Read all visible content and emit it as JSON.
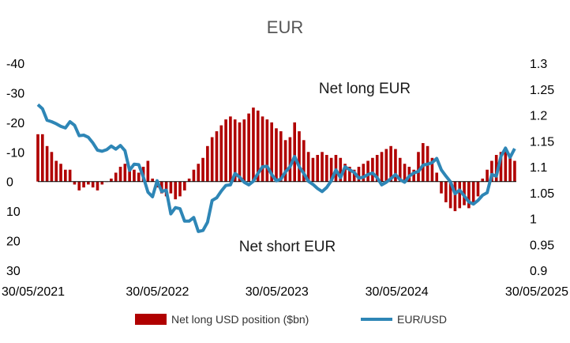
{
  "chart_data": {
    "type": "bar+line",
    "title": "EUR",
    "annotations": [
      "Net long EUR",
      "Net short EUR"
    ],
    "x_tick_labels": [
      "30/05/2021",
      "30/05/2022",
      "30/05/2023",
      "30/05/2024",
      "30/05/2025"
    ],
    "left_axis": {
      "tick_labels": [
        "-40",
        "-30",
        "-20",
        "-10",
        "0",
        "10",
        "20",
        "30"
      ],
      "ylim": [
        -40,
        30
      ],
      "inverted": true
    },
    "right_axis": {
      "tick_labels": [
        "1.3",
        "1.25",
        "1.2",
        "1.15",
        "1.1",
        "1.05",
        "1",
        "0.95",
        "0.9"
      ],
      "ylim": [
        0.9,
        1.3
      ]
    },
    "legend_position": "bottom",
    "series": [
      {
        "name": "Net long USD position ($bn)",
        "type": "bar",
        "axis": "left",
        "color": "#b00000",
        "points": [
          [
            "2021-05-30",
            -16
          ],
          [
            "2021-06-13",
            -16
          ],
          [
            "2021-06-27",
            -12
          ],
          [
            "2021-07-11",
            -10
          ],
          [
            "2021-07-25",
            -7
          ],
          [
            "2021-08-08",
            -6
          ],
          [
            "2021-08-22",
            -4
          ],
          [
            "2021-09-05",
            -4
          ],
          [
            "2021-09-19",
            1
          ],
          [
            "2021-10-03",
            3
          ],
          [
            "2021-10-17",
            2
          ],
          [
            "2021-10-31",
            1
          ],
          [
            "2021-11-14",
            2
          ],
          [
            "2021-11-28",
            3
          ],
          [
            "2021-12-12",
            1
          ],
          [
            "2021-12-26",
            0
          ],
          [
            "2022-01-09",
            -1
          ],
          [
            "2022-01-23",
            -3
          ],
          [
            "2022-02-06",
            -5
          ],
          [
            "2022-02-20",
            -6
          ],
          [
            "2022-03-06",
            -5
          ],
          [
            "2022-03-20",
            -4
          ],
          [
            "2022-04-03",
            -3
          ],
          [
            "2022-04-17",
            -5
          ],
          [
            "2022-05-01",
            -7
          ],
          [
            "2022-05-15",
            -1
          ],
          [
            "2022-05-29",
            2
          ],
          [
            "2022-06-12",
            4
          ],
          [
            "2022-06-26",
            5
          ],
          [
            "2022-07-10",
            4
          ],
          [
            "2022-07-24",
            6
          ],
          [
            "2022-08-07",
            5
          ],
          [
            "2022-08-21",
            3
          ],
          [
            "2022-09-04",
            -1
          ],
          [
            "2022-09-18",
            -4
          ],
          [
            "2022-10-02",
            -6
          ],
          [
            "2022-10-16",
            -8
          ],
          [
            "2022-10-30",
            -12
          ],
          [
            "2022-11-13",
            -15
          ],
          [
            "2022-11-27",
            -17
          ],
          [
            "2022-12-11",
            -19
          ],
          [
            "2022-12-25",
            -21
          ],
          [
            "2023-01-08",
            -22
          ],
          [
            "2023-01-22",
            -21
          ],
          [
            "2023-02-05",
            -20
          ],
          [
            "2023-02-19",
            -21
          ],
          [
            "2023-03-05",
            -23
          ],
          [
            "2023-03-19",
            -25
          ],
          [
            "2023-04-02",
            -24
          ],
          [
            "2023-04-16",
            -22
          ],
          [
            "2023-04-30",
            -21
          ],
          [
            "2023-05-14",
            -20
          ],
          [
            "2023-05-28",
            -18
          ],
          [
            "2023-06-11",
            -17
          ],
          [
            "2023-06-25",
            -14
          ],
          [
            "2023-07-09",
            -15
          ],
          [
            "2023-07-23",
            -20
          ],
          [
            "2023-08-06",
            -17
          ],
          [
            "2023-08-20",
            -14
          ],
          [
            "2023-09-03",
            -10
          ],
          [
            "2023-09-17",
            -8
          ],
          [
            "2023-10-01",
            -9
          ],
          [
            "2023-10-15",
            -10
          ],
          [
            "2023-10-29",
            -9
          ],
          [
            "2023-11-12",
            -8
          ],
          [
            "2023-11-26",
            -9
          ],
          [
            "2023-12-10",
            -8
          ],
          [
            "2023-12-24",
            -6
          ],
          [
            "2024-01-07",
            -5
          ],
          [
            "2024-01-21",
            -4
          ],
          [
            "2024-02-04",
            -5
          ],
          [
            "2024-02-18",
            -6
          ],
          [
            "2024-03-03",
            -7
          ],
          [
            "2024-03-17",
            -8
          ],
          [
            "2024-03-31",
            -9
          ],
          [
            "2024-04-14",
            -10
          ],
          [
            "2024-04-28",
            -11
          ],
          [
            "2024-05-12",
            -12
          ],
          [
            "2024-05-26",
            -11
          ],
          [
            "2024-06-09",
            -8
          ],
          [
            "2024-06-23",
            -6
          ],
          [
            "2024-07-07",
            -5
          ],
          [
            "2024-07-21",
            -4
          ],
          [
            "2024-08-04",
            -10
          ],
          [
            "2024-08-18",
            -13
          ],
          [
            "2024-09-01",
            -12
          ],
          [
            "2024-09-15",
            -8
          ],
          [
            "2024-09-29",
            -3
          ],
          [
            "2024-10-13",
            4
          ],
          [
            "2024-10-27",
            7
          ],
          [
            "2024-11-10",
            9
          ],
          [
            "2024-11-24",
            10
          ],
          [
            "2024-12-08",
            9
          ],
          [
            "2024-12-22",
            8
          ],
          [
            "2025-01-05",
            9
          ],
          [
            "2025-01-19",
            7
          ],
          [
            "2025-02-02",
            5
          ],
          [
            "2025-02-16",
            -1
          ],
          [
            "2025-03-02",
            -4
          ],
          [
            "2025-03-16",
            -7
          ],
          [
            "2025-03-30",
            -9
          ],
          [
            "2025-04-13",
            -10
          ],
          [
            "2025-04-27",
            -11
          ],
          [
            "2025-05-11",
            -9
          ],
          [
            "2025-05-25",
            -7
          ]
        ]
      },
      {
        "name": "EUR/USD",
        "type": "line",
        "axis": "right",
        "color": "#2e86b6",
        "points": [
          [
            "2021-05-30",
            1.22
          ],
          [
            "2021-06-13",
            1.212
          ],
          [
            "2021-06-27",
            1.19
          ],
          [
            "2021-07-11",
            1.187
          ],
          [
            "2021-07-25",
            1.183
          ],
          [
            "2021-08-08",
            1.178
          ],
          [
            "2021-08-22",
            1.175
          ],
          [
            "2021-09-05",
            1.187
          ],
          [
            "2021-09-19",
            1.18
          ],
          [
            "2021-10-03",
            1.16
          ],
          [
            "2021-10-17",
            1.161
          ],
          [
            "2021-10-31",
            1.157
          ],
          [
            "2021-11-14",
            1.146
          ],
          [
            "2021-11-28",
            1.132
          ],
          [
            "2021-12-12",
            1.13
          ],
          [
            "2021-12-26",
            1.133
          ],
          [
            "2022-01-09",
            1.14
          ],
          [
            "2022-01-23",
            1.134
          ],
          [
            "2022-02-06",
            1.141
          ],
          [
            "2022-02-20",
            1.131
          ],
          [
            "2022-03-06",
            1.093
          ],
          [
            "2022-03-20",
            1.105
          ],
          [
            "2022-04-03",
            1.104
          ],
          [
            "2022-04-17",
            1.08
          ],
          [
            "2022-05-01",
            1.051
          ],
          [
            "2022-05-15",
            1.042
          ],
          [
            "2022-05-29",
            1.073
          ],
          [
            "2022-06-12",
            1.052
          ],
          [
            "2022-06-26",
            1.055
          ],
          [
            "2022-07-10",
            1.009
          ],
          [
            "2022-07-24",
            1.021
          ],
          [
            "2022-08-07",
            1.019
          ],
          [
            "2022-08-21",
            0.995
          ],
          [
            "2022-09-04",
            0.995
          ],
          [
            "2022-09-18",
            1.002
          ],
          [
            "2022-10-02",
            0.975
          ],
          [
            "2022-10-16",
            0.977
          ],
          [
            "2022-10-30",
            0.993
          ],
          [
            "2022-11-13",
            1.035
          ],
          [
            "2022-11-27",
            1.04
          ],
          [
            "2022-12-11",
            1.053
          ],
          [
            "2022-12-25",
            1.064
          ],
          [
            "2023-01-08",
            1.065
          ],
          [
            "2023-01-22",
            1.087
          ],
          [
            "2023-02-05",
            1.08
          ],
          [
            "2023-02-19",
            1.07
          ],
          [
            "2023-03-05",
            1.065
          ],
          [
            "2023-03-19",
            1.072
          ],
          [
            "2023-04-02",
            1.087
          ],
          [
            "2023-04-16",
            1.1
          ],
          [
            "2023-04-30",
            1.101
          ],
          [
            "2023-05-14",
            1.085
          ],
          [
            "2023-05-28",
            1.073
          ],
          [
            "2023-06-11",
            1.076
          ],
          [
            "2023-06-25",
            1.09
          ],
          [
            "2023-07-09",
            1.1
          ],
          [
            "2023-07-23",
            1.12
          ],
          [
            "2023-08-06",
            1.1
          ],
          [
            "2023-08-20",
            1.087
          ],
          [
            "2023-09-03",
            1.072
          ],
          [
            "2023-09-17",
            1.066
          ],
          [
            "2023-10-01",
            1.058
          ],
          [
            "2023-10-15",
            1.052
          ],
          [
            "2023-10-29",
            1.06
          ],
          [
            "2023-11-12",
            1.073
          ],
          [
            "2023-11-26",
            1.094
          ],
          [
            "2023-12-10",
            1.079
          ],
          [
            "2023-12-24",
            1.1
          ],
          [
            "2024-01-07",
            1.094
          ],
          [
            "2024-01-21",
            1.089
          ],
          [
            "2024-02-04",
            1.078
          ],
          [
            "2024-02-18",
            1.08
          ],
          [
            "2024-03-03",
            1.085
          ],
          [
            "2024-03-17",
            1.088
          ],
          [
            "2024-03-31",
            1.079
          ],
          [
            "2024-04-14",
            1.065
          ],
          [
            "2024-04-28",
            1.07
          ],
          [
            "2024-05-12",
            1.077
          ],
          [
            "2024-05-26",
            1.085
          ],
          [
            "2024-06-09",
            1.075
          ],
          [
            "2024-06-23",
            1.07
          ],
          [
            "2024-07-07",
            1.082
          ],
          [
            "2024-07-21",
            1.088
          ],
          [
            "2024-08-04",
            1.091
          ],
          [
            "2024-08-18",
            1.103
          ],
          [
            "2024-09-01",
            1.105
          ],
          [
            "2024-09-15",
            1.108
          ],
          [
            "2024-09-29",
            1.116
          ],
          [
            "2024-10-13",
            1.094
          ],
          [
            "2024-10-27",
            1.082
          ],
          [
            "2024-11-10",
            1.071
          ],
          [
            "2024-11-24",
            1.048
          ],
          [
            "2024-12-08",
            1.055
          ],
          [
            "2024-12-22",
            1.044
          ],
          [
            "2025-01-05",
            1.032
          ],
          [
            "2025-01-19",
            1.028
          ],
          [
            "2025-02-02",
            1.035
          ],
          [
            "2025-02-16",
            1.045
          ],
          [
            "2025-03-02",
            1.05
          ],
          [
            "2025-03-16",
            1.085
          ],
          [
            "2025-03-30",
            1.082
          ],
          [
            "2025-04-13",
            1.12
          ],
          [
            "2025-04-27",
            1.136
          ],
          [
            "2025-05-11",
            1.118
          ],
          [
            "2025-05-25",
            1.135
          ]
        ]
      }
    ]
  },
  "colors": {
    "bars": "#b00000",
    "line": "#2e86b6",
    "title": "#555555"
  }
}
